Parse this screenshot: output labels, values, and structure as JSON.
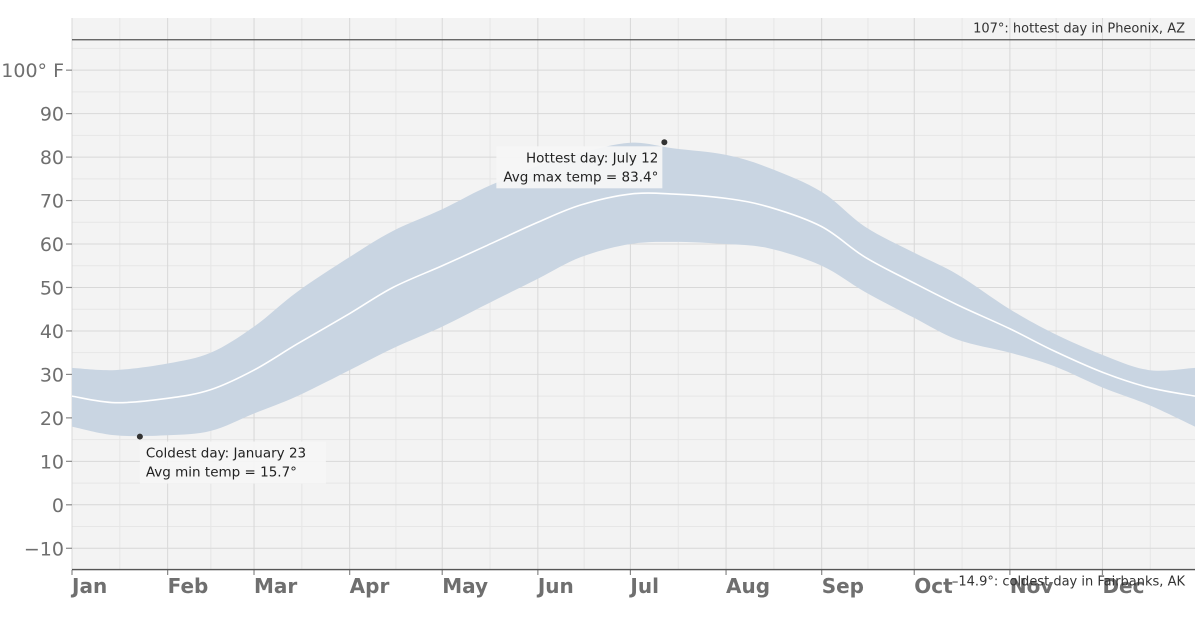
{
  "chart_data": {
    "type": "area",
    "y_unit_label": "100° F",
    "yticks": [
      -10,
      0,
      10,
      20,
      30,
      40,
      50,
      60,
      70,
      80,
      90,
      100
    ],
    "ylim": [
      -15,
      112
    ],
    "months": [
      "Jan",
      "Feb",
      "Mar",
      "Apr",
      "May",
      "Jun",
      "Jul",
      "Aug",
      "Sep",
      "Oct",
      "Nov",
      "Dec"
    ],
    "grid": true,
    "band": {
      "x": [
        1,
        15,
        32,
        46,
        60,
        74,
        91,
        105,
        121,
        135,
        152,
        166,
        182,
        196,
        213,
        227,
        244,
        258,
        274,
        288,
        305,
        319,
        335,
        350,
        365
      ],
      "max": [
        31.5,
        31,
        32.5,
        35,
        41,
        49,
        57,
        63,
        68,
        73,
        78,
        81,
        83.3,
        82,
        80.5,
        77.5,
        72,
        64,
        58,
        53,
        45,
        39.5,
        34.5,
        31,
        31.5
      ],
      "min": [
        18,
        16,
        16,
        17,
        21,
        25,
        31,
        36,
        41,
        46,
        52,
        57,
        60,
        60.5,
        60,
        59,
        55,
        49,
        43,
        38,
        35,
        32,
        27,
        23,
        18
      ],
      "mean": [
        25,
        23.5,
        24.5,
        26.5,
        31,
        37,
        44,
        50,
        55,
        59.5,
        65,
        69,
        71.5,
        71.5,
        70.5,
        68.5,
        64,
        57,
        51,
        46,
        40.5,
        35.5,
        30.5,
        27,
        25
      ]
    },
    "reference_lines": [
      {
        "value": 107,
        "label": "107°: hottest day in Pheonix, AZ"
      },
      {
        "value": -14.9,
        "label": "–14.9°: coldest day in Fairbanks, AK"
      }
    ],
    "annotations": [
      {
        "day": 23,
        "value": 15.7,
        "line1": "Coldest day: January 23",
        "line2": "Avg min temp = 15.7°",
        "align": "left"
      },
      {
        "day": 193,
        "value": 83.4,
        "line1": "Hottest day: July 12",
        "line2": "Avg max temp = 83.4°",
        "align": "right"
      }
    ],
    "colors": {
      "plot_bg": "#f3f3f3",
      "band": "#c9d5e2",
      "mean_line": "#ffffff",
      "grid": "#d8d8d8",
      "ref_line": "#555555",
      "dot": "#333333"
    }
  }
}
